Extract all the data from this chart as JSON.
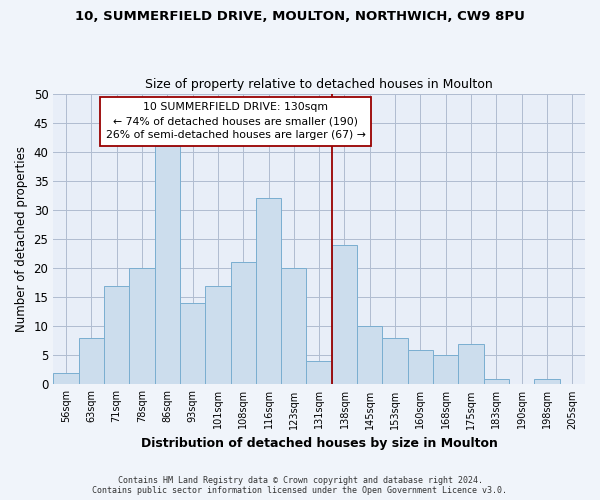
{
  "title": "10, SUMMERFIELD DRIVE, MOULTON, NORTHWICH, CW9 8PU",
  "subtitle": "Size of property relative to detached houses in Moulton",
  "xlabel": "Distribution of detached houses by size in Moulton",
  "ylabel": "Number of detached properties",
  "bin_labels": [
    "56sqm",
    "63sqm",
    "71sqm",
    "78sqm",
    "86sqm",
    "93sqm",
    "101sqm",
    "108sqm",
    "116sqm",
    "123sqm",
    "131sqm",
    "138sqm",
    "145sqm",
    "153sqm",
    "160sqm",
    "168sqm",
    "175sqm",
    "183sqm",
    "190sqm",
    "198sqm",
    "205sqm"
  ],
  "bar_values": [
    2,
    8,
    17,
    20,
    41,
    14,
    17,
    21,
    32,
    20,
    4,
    24,
    10,
    8,
    6,
    5,
    7,
    1,
    0,
    1,
    0
  ],
  "bar_color": "#ccdded",
  "bar_edge_color": "#7aaed0",
  "vline_x": 10.5,
  "vline_color": "#990000",
  "annotation_text": "10 SUMMERFIELD DRIVE: 130sqm\n← 74% of detached houses are smaller (190)\n26% of semi-detached houses are larger (67) →",
  "annotation_box_edge": "#990000",
  "ylim": [
    0,
    50
  ],
  "yticks": [
    0,
    5,
    10,
    15,
    20,
    25,
    30,
    35,
    40,
    45,
    50
  ],
  "footer_line1": "Contains HM Land Registry data © Crown copyright and database right 2024.",
  "footer_line2": "Contains public sector information licensed under the Open Government Licence v3.0.",
  "bg_color": "#f0f4fa",
  "plot_bg_color": "#e8eef8",
  "grid_color": "#b0bcd0"
}
